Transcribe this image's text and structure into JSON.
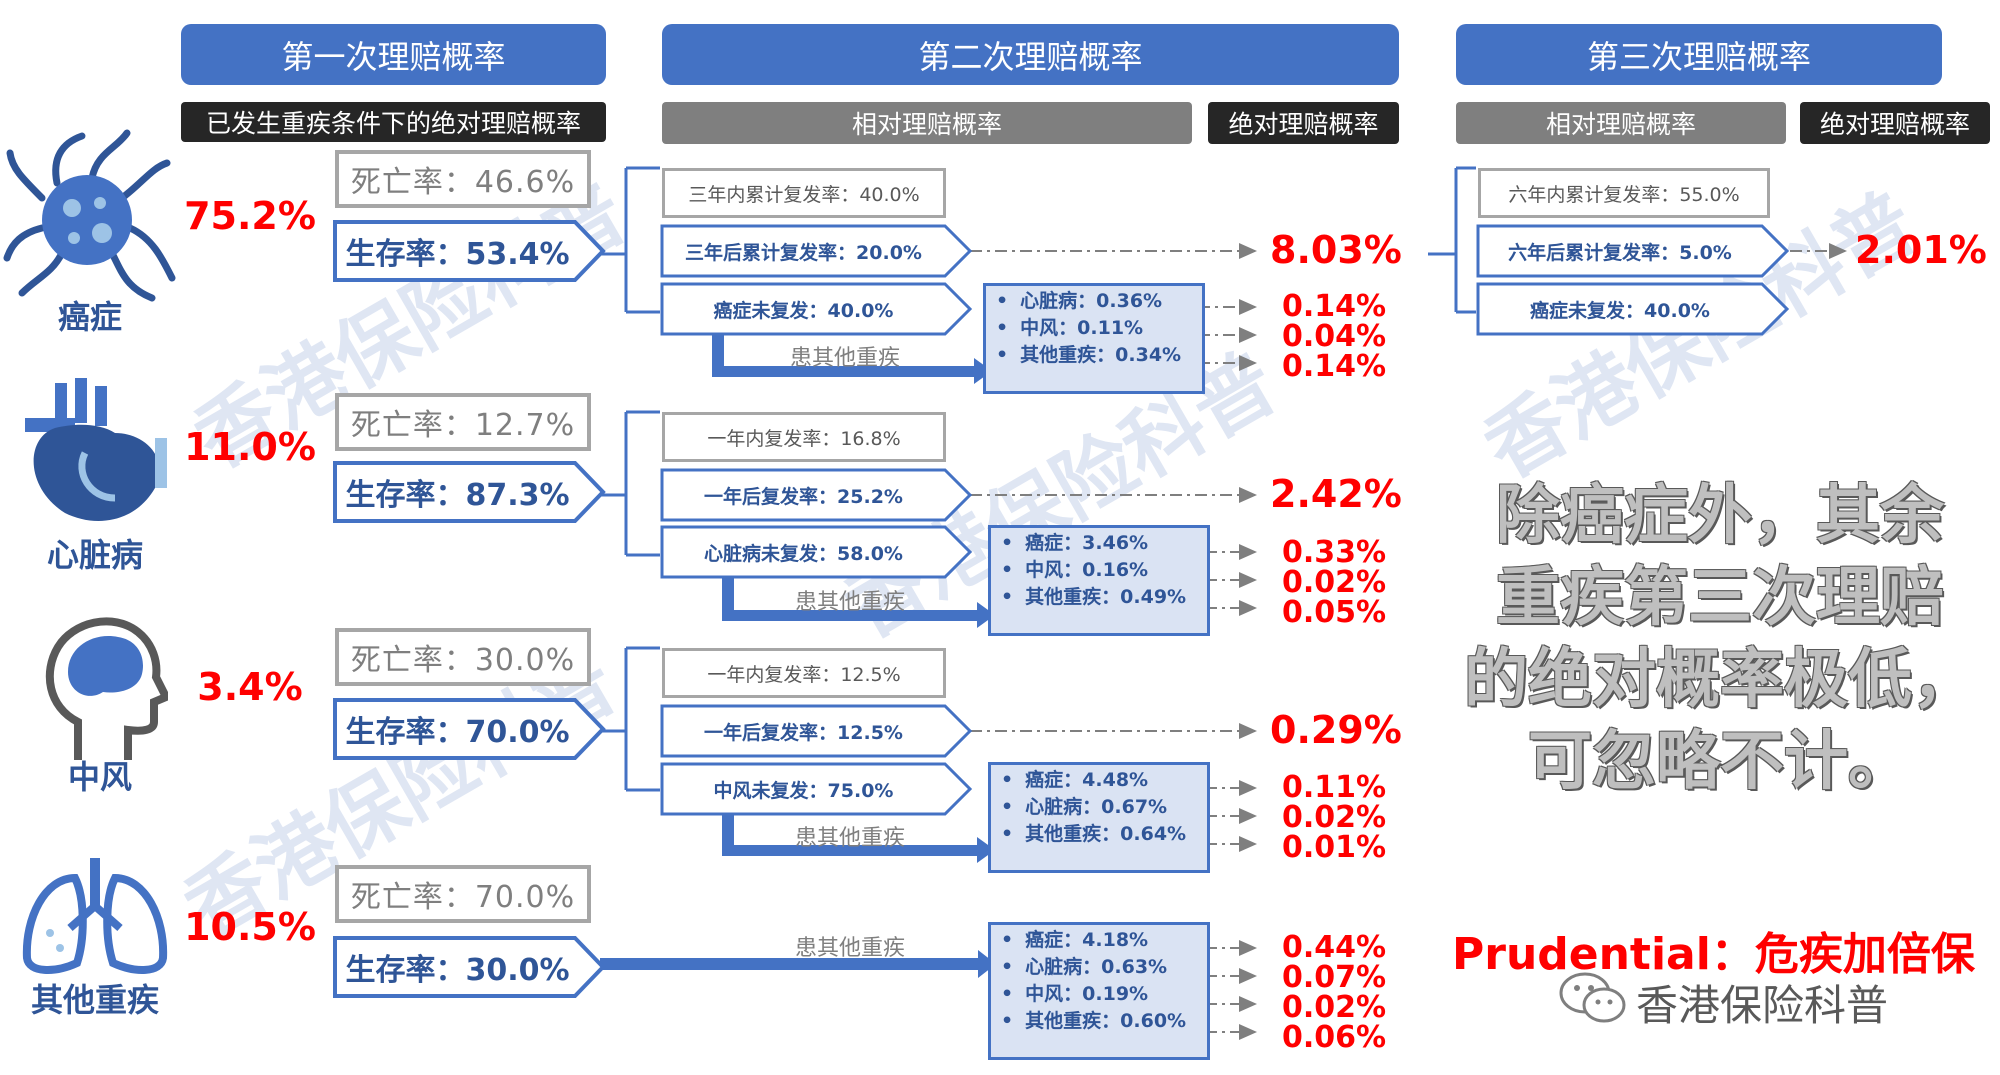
{
  "headers": {
    "first": "第一次理赔概率",
    "second": "第二次理赔概率",
    "third": "第三次理赔概率"
  },
  "subheaders": {
    "first": "已发生重疾条件下的绝对理赔概率",
    "second_relative": "相对理赔概率",
    "second_absolute": "绝对理赔概率",
    "third_relative": "相对理赔概率",
    "third_absolute": "绝对理赔概率"
  },
  "categories": [
    {
      "name": "癌症",
      "icon": "cancer-cell-icon",
      "first_prob": "75.2%",
      "death": "死亡率：46.6%",
      "survival": "生存率：53.4%",
      "second": {
        "within": "三年内累计复发率：40.0%",
        "after": "三年后累计复发率：20.0%",
        "after_abs": "8.03%",
        "no_recur": "癌症未复发：40.0%",
        "other_label": "患其他重疾",
        "sub": [
          {
            "label": "心脏病：0.36%",
            "abs": "0.14%"
          },
          {
            "label": "中风：0.11%",
            "abs": "0.04%"
          },
          {
            "label": "其他重疾：0.34%",
            "abs": "0.14%"
          }
        ]
      },
      "third": {
        "within": "六年内累计复发率：55.0%",
        "after": "六年后累计复发率：5.0%",
        "after_abs": "2.01%",
        "no_recur": "癌症未复发：40.0%"
      }
    },
    {
      "name": "心脏病",
      "icon": "heart-icon",
      "first_prob": "11.0%",
      "death": "死亡率：12.7%",
      "survival": "生存率：87.3%",
      "second": {
        "within": "一年内复发率：16.8%",
        "after": "一年后复发率：25.2%",
        "after_abs": "2.42%",
        "no_recur": "心脏病未复发：58.0%",
        "other_label": "患其他重疾",
        "sub": [
          {
            "label": "癌症：3.46%",
            "abs": "0.33%"
          },
          {
            "label": "中风：0.16%",
            "abs": "0.02%"
          },
          {
            "label": "其他重疾：0.49%",
            "abs": "0.05%"
          }
        ]
      }
    },
    {
      "name": "中风",
      "icon": "brain-head-icon",
      "first_prob": "3.4%",
      "death": "死亡率：30.0%",
      "survival": "生存率：70.0%",
      "second": {
        "within": "一年内复发率：12.5%",
        "after": "一年后复发率：12.5%",
        "after_abs": "0.29%",
        "no_recur": "中风未复发：75.0%",
        "other_label": "患其他重疾",
        "sub": [
          {
            "label": "癌症：4.48%",
            "abs": "0.11%"
          },
          {
            "label": "心脏病：0.67%",
            "abs": "0.02%"
          },
          {
            "label": "其他重疾：0.64%",
            "abs": "0.01%"
          }
        ]
      }
    },
    {
      "name": "其他重疾",
      "icon": "lungs-icon",
      "first_prob": "10.5%",
      "death": "死亡率：70.0%",
      "survival": "生存率：30.0%",
      "second": {
        "other_label": "患其他重疾",
        "sub": [
          {
            "label": "癌症：4.18%",
            "abs": "0.44%"
          },
          {
            "label": "心脏病：0.63%",
            "abs": "0.07%"
          },
          {
            "label": "中风：0.19%",
            "abs": "0.02%"
          },
          {
            "label": "其他重疾：0.60%",
            "abs": "0.06%"
          }
        ]
      }
    }
  ],
  "summary_lines": [
    "除癌症外，其余",
    "重疾第三次理赔",
    "的绝对概率极低，",
    "可忽略不计。"
  ],
  "brand": "Prudential：危疾加倍保",
  "wechat_account": "香港保险科普",
  "watermark_lines": [
    "香港保险科普",
    "香港保险科普",
    "香港保险科普",
    "香港保险科普"
  ],
  "colors": {
    "accent_blue": "#4472c4",
    "dark_blue": "#2f5597",
    "highlight_red": "#ff0000",
    "panel_fill": "#dae3f3"
  }
}
